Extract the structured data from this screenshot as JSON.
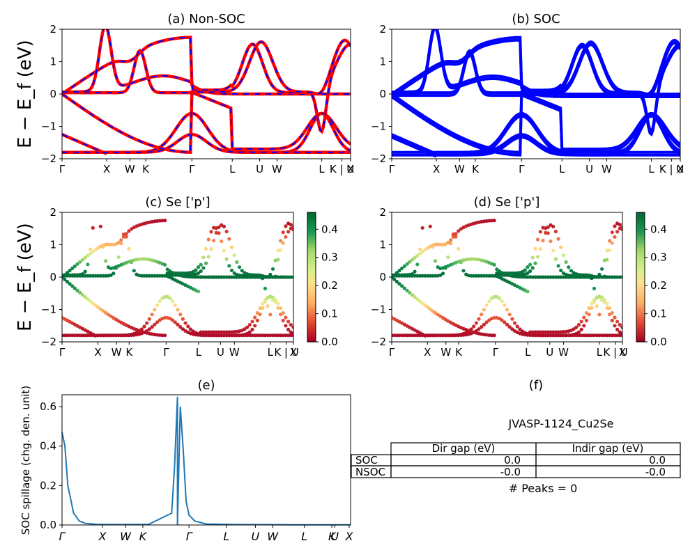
{
  "figure": {
    "band_ylabel": "E − E_f (eV)",
    "kpath_labels": [
      "Γ",
      "X",
      "W",
      "K",
      "Γ",
      "L",
      "U",
      "W",
      "L",
      "K | U",
      "X"
    ],
    "spillage_kpath_labels": [
      "Γ",
      "X",
      "W",
      "K",
      "Γ",
      "L",
      "U",
      "W",
      "L",
      "K",
      "U",
      "X"
    ],
    "colors": {
      "blue": "#0000ff",
      "red": "#ff0000",
      "spill_line": "#1f77b4"
    }
  },
  "panels": {
    "a": {
      "title": "(a) Non-SOC"
    },
    "b": {
      "title": "(b) SOC"
    },
    "c": {
      "title": "(c)  Se ['p']"
    },
    "d": {
      "title": "(d) Se ['p']"
    },
    "e": {
      "title": "(e)",
      "ylabel": "SOC spillage (chg. den. unit)"
    },
    "f": {
      "title": "(f)"
    }
  },
  "colorbar": {
    "ticks": [
      "0.0",
      "0.1",
      "0.2",
      "0.3",
      "0.4"
    ],
    "max": 0.46,
    "cmap": "RdYlGn"
  },
  "table": {
    "title": "JVASP-1124_Cu2Se",
    "col_headers": [
      "Dir gap (eV)",
      "Indir gap (eV)"
    ],
    "rows": [
      {
        "label": "SOC",
        "dir": "0.0",
        "indir": "0.0"
      },
      {
        "label": "NSOC",
        "dir": "-0.0",
        "indir": "-0.0"
      }
    ],
    "footer": "# Peaks = 0"
  },
  "chart_data": [
    {
      "type": "line",
      "title": "(a) Non-SOC",
      "ylabel": "E − E_f (eV)",
      "ylim": [
        -2,
        2
      ],
      "yticks": [
        -2,
        -1,
        0,
        1,
        2
      ],
      "xticks": [
        "Γ",
        "X",
        "W",
        "K",
        "Γ",
        "L",
        "U",
        "W",
        "L",
        "K | U",
        "X"
      ],
      "series": [
        {
          "values": []
        },
        {
          "values": []
        }
      ]
    },
    {
      "type": "line",
      "title": "(b) SOC",
      "ylim": [
        -2,
        2
      ],
      "yticks": [
        -2,
        -1,
        0,
        1,
        2
      ],
      "xticks": [
        "Γ",
        "X",
        "W",
        "K",
        "Γ",
        "L",
        "U",
        "W",
        "L",
        "K | U",
        "X"
      ]
    },
    {
      "type": "scatter",
      "title": "(c)  Se ['p']",
      "ylabel": "E − E_f (eV)",
      "ylim": [
        -2,
        2
      ],
      "yticks": [
        -2,
        -1,
        0,
        1,
        2
      ],
      "colorbar_ticks": [
        0.0,
        0.1,
        0.2,
        0.3,
        0.4
      ]
    },
    {
      "type": "scatter",
      "title": "(d) Se ['p']",
      "ylim": [
        -2,
        2
      ],
      "yticks": [
        -2,
        -1,
        0,
        1,
        2
      ],
      "colorbar_ticks": [
        0.0,
        0.1,
        0.2,
        0.3,
        0.4
      ]
    },
    {
      "type": "line",
      "title": "(e)",
      "ylabel": "SOC spillage (chg. den. unit)",
      "ylim": [
        0,
        0.66
      ],
      "yticks": [
        0.0,
        0.2,
        0.4,
        0.6
      ],
      "xticks": [
        "Γ",
        "X",
        "W",
        "K",
        "Γ",
        "L",
        "U",
        "W",
        "L",
        "K",
        "U",
        "X"
      ],
      "x": [
        0,
        0.01,
        0.02,
        0.04,
        0.06,
        0.08,
        0.12,
        0.2,
        0.3,
        0.38,
        0.39,
        0.4,
        0.4,
        0.41,
        0.42,
        0.43,
        0.44,
        0.46,
        0.5,
        0.6,
        0.8,
        1.0
      ],
      "values": [
        0.47,
        0.4,
        0.2,
        0.06,
        0.02,
        0.008,
        0.003,
        0.002,
        0.003,
        0.06,
        0.3,
        0.65,
        0.0,
        0.6,
        0.38,
        0.12,
        0.05,
        0.02,
        0.005,
        0.002,
        0.001,
        0.001
      ]
    }
  ]
}
